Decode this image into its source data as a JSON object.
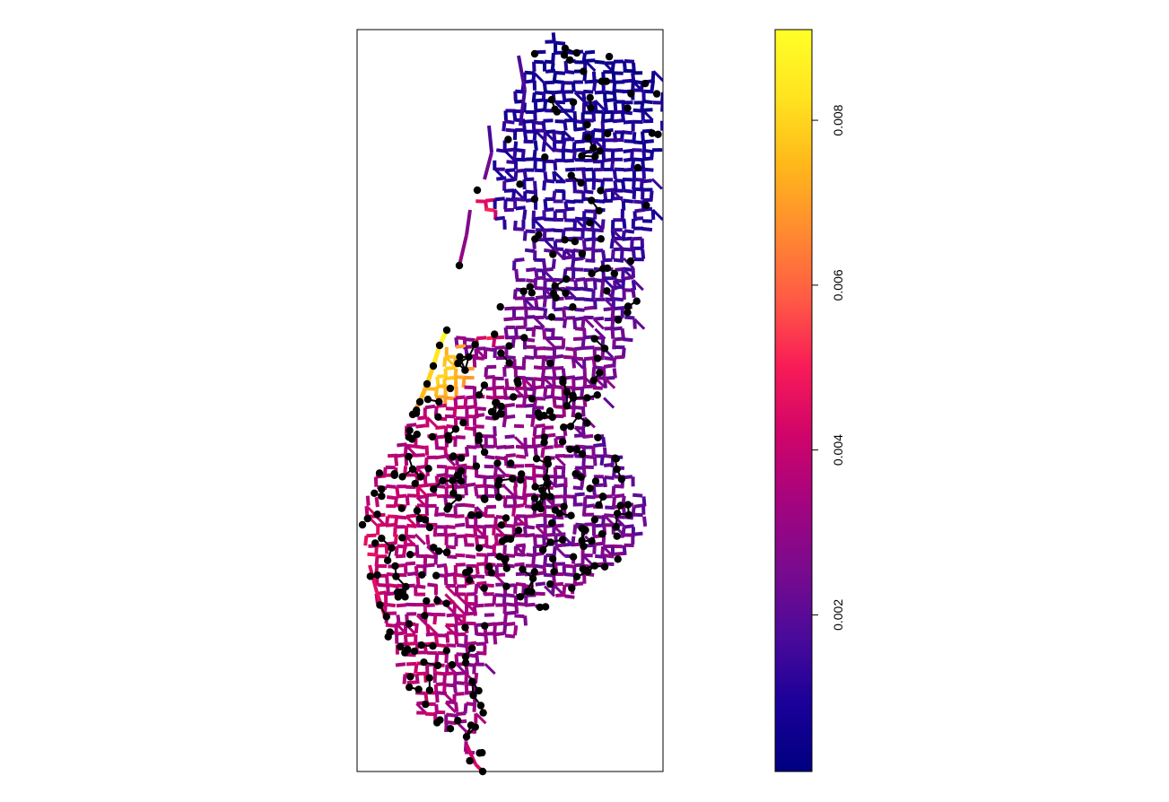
{
  "figure": {
    "type": "network-map",
    "description": "street network segments colored by value with black node markers",
    "background": "#ffffff",
    "frame_color": "#000000",
    "node_color": "#000000"
  },
  "colorbar": {
    "palette": [
      "#000080",
      "#1A0099",
      "#4B0A9A",
      "#7A0A8E",
      "#A5047F",
      "#D00469",
      "#F81B57",
      "#FF5A45",
      "#FF8A30",
      "#FFB81A",
      "#FFE41F",
      "#FFFF28"
    ],
    "range": [
      0.0001,
      0.0091
    ],
    "ticks": [
      {
        "value": 0.002,
        "label": "0.002"
      },
      {
        "value": 0.004,
        "label": "0.004"
      },
      {
        "value": 0.006,
        "label": "0.006"
      },
      {
        "value": 0.008,
        "label": "0.008"
      }
    ]
  }
}
